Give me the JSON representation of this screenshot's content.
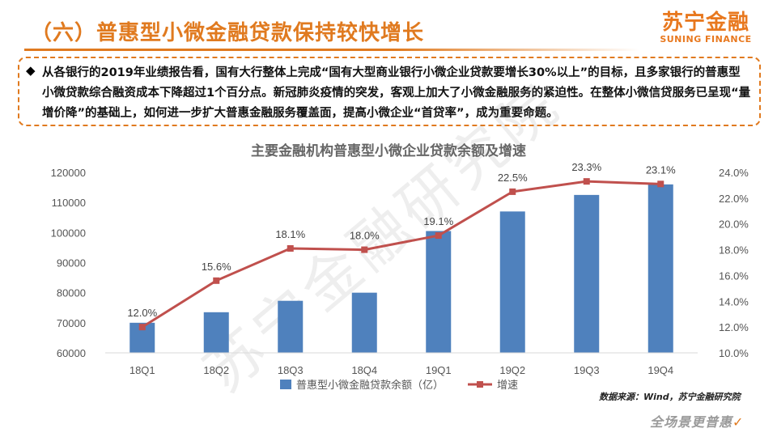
{
  "header": {
    "title": "（六）普惠型小微金融贷款保持较快增长"
  },
  "logo": {
    "cn": "苏宁金融",
    "en": "SUNING FINANCE"
  },
  "summary": {
    "bullet": "◆",
    "text": "从各银行的2019年业绩报告看，国有大行整体上完成“国有大型商业银行小微企业贷款要增长30%以上”的目标，且多家银行的普惠型小微贷款综合融资成本下降超过1个百分点。新冠肺炎疫情的突发，客观上加大了小微金融服务的紧迫性。在整体小微信贷服务已呈现“量增价降”的基础上，如何进一步扩大普惠金融服务覆盖面，提高小微企业“首贷率”，成为重要命题。"
  },
  "watermark": "苏宁金融研究院",
  "source": "数据来源：Wind，苏宁金融研究院",
  "slogan": {
    "text": "全场景更普惠",
    "tick": "✓"
  },
  "colors": {
    "accent": "#e07a1f",
    "bar": "#4f81bd",
    "line": "#c0504d"
  },
  "chart_data": {
    "type": "bar",
    "title": "主要金融机构普惠型小微企业贷款余额及增速",
    "categories": [
      "18Q1",
      "18Q2",
      "18Q3",
      "18Q4",
      "19Q1",
      "19Q2",
      "19Q3",
      "19Q4"
    ],
    "series": [
      {
        "name": "普惠型小微金融贷款余额（亿）",
        "type": "bar",
        "axis": "left",
        "values": [
          70000,
          73500,
          77300,
          80000,
          100500,
          107000,
          112500,
          116000
        ]
      },
      {
        "name": "增速",
        "type": "line",
        "axis": "right",
        "values": [
          12.0,
          15.6,
          18.1,
          18.0,
          19.1,
          22.5,
          23.3,
          23.1
        ],
        "labels": [
          "12.0%",
          "15.6%",
          "18.1%",
          "18.0%",
          "19.1%",
          "22.5%",
          "23.3%",
          "23.1%"
        ]
      }
    ],
    "ylim_left": [
      60000,
      120000
    ],
    "yticks_left": [
      "60000",
      "70000",
      "80000",
      "90000",
      "100000",
      "110000",
      "120000"
    ],
    "ylim_right": [
      10.0,
      24.0
    ],
    "yticks_right": [
      "10.0%",
      "12.0%",
      "14.0%",
      "16.0%",
      "18.0%",
      "20.0%",
      "22.0%",
      "24.0%"
    ],
    "grid": false,
    "legend_position": "bottom"
  }
}
